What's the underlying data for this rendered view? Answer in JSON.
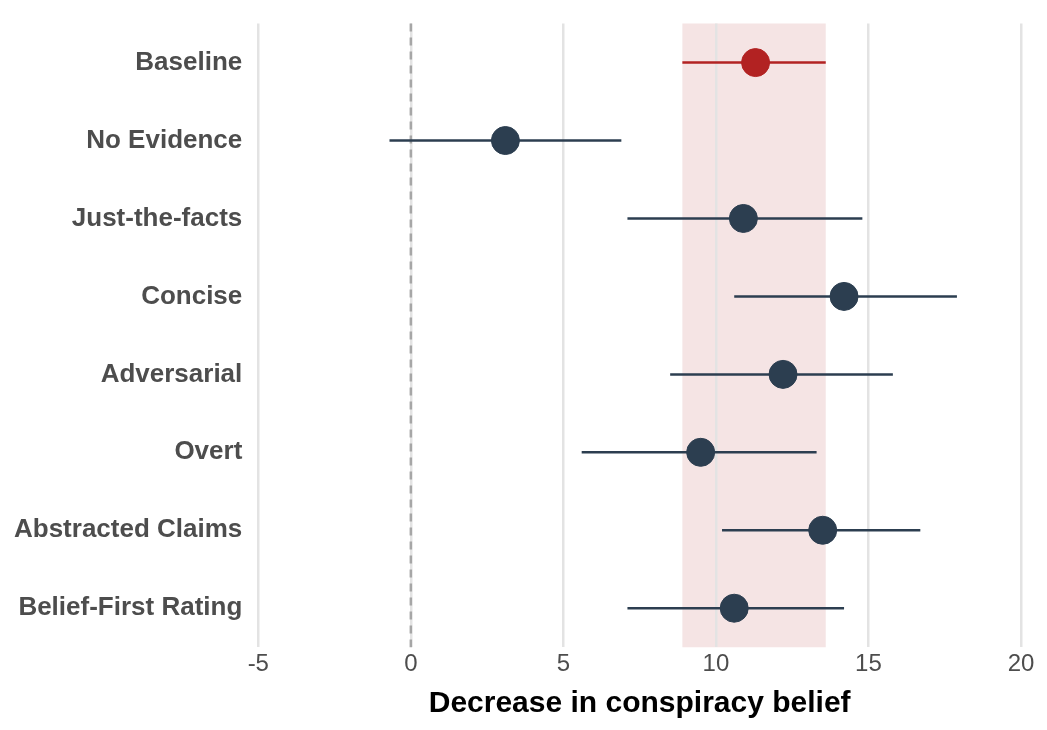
{
  "chart_data": {
    "type": "scatter",
    "orientation": "horizontal",
    "xlabel": "Decrease in conspiracy belief",
    "categories": [
      "Baseline",
      "No Evidence",
      "Just-the-facts",
      "Concise",
      "Adversarial",
      "Overt",
      "Abstracted Claims",
      "Belief-First Rating"
    ],
    "values": [
      11.3,
      3.1,
      10.9,
      14.2,
      12.2,
      9.5,
      13.5,
      10.6
    ],
    "errors": [
      [
        8.9,
        13.6
      ],
      [
        -0.7,
        6.9
      ],
      [
        7.1,
        14.8
      ],
      [
        10.6,
        17.9
      ],
      [
        8.5,
        15.8
      ],
      [
        5.6,
        13.3
      ],
      [
        10.2,
        16.7
      ],
      [
        7.1,
        14.2
      ]
    ],
    "colors": [
      "#b22222",
      "#2c3e50",
      "#2c3e50",
      "#2c3e50",
      "#2c3e50",
      "#2c3e50",
      "#2c3e50",
      "#2c3e50"
    ],
    "xlim": [
      -5,
      20
    ],
    "xticks": [
      -5,
      0,
      5,
      10,
      15,
      20
    ],
    "grid": "x",
    "legend": false,
    "marker": "circle",
    "ref_lines": [
      {
        "axis": "x",
        "value": 0,
        "color": "#a6a6a6",
        "line_style": "dashed"
      }
    ],
    "bands": [
      {
        "axis": "x",
        "from": 8.9,
        "to": 13.6,
        "color": "#f5e4e4"
      }
    ]
  }
}
